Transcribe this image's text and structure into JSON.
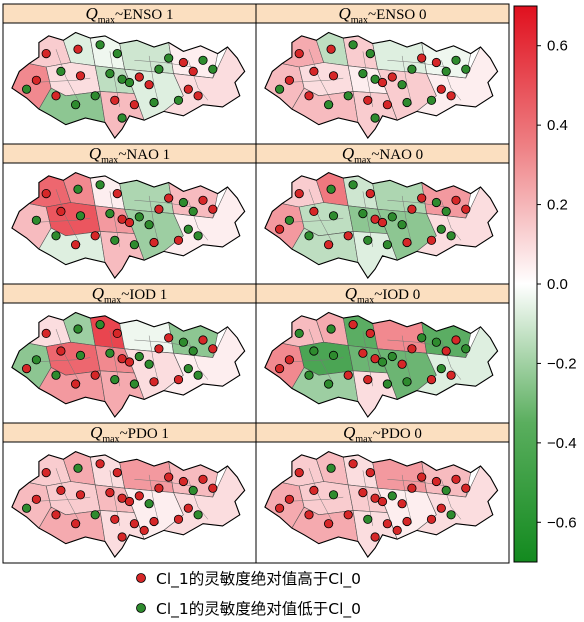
{
  "panels": [
    {
      "index": "max",
      "index_name": "ENSO",
      "phase": "1"
    },
    {
      "index": "max",
      "index_name": "ENSO",
      "phase": "0"
    },
    {
      "index": "max",
      "index_name": "NAO",
      "phase": "1"
    },
    {
      "index": "max",
      "index_name": "NAO",
      "phase": "0"
    },
    {
      "index": "max",
      "index_name": "IOD",
      "phase": "1"
    },
    {
      "index": "max",
      "index_name": "IOD",
      "phase": "0"
    },
    {
      "index": "max",
      "index_name": "PDO",
      "phase": "1"
    },
    {
      "index": "max",
      "index_name": "PDO",
      "phase": "0"
    }
  ],
  "title_symbol": "Q",
  "title_separator": "~",
  "colorbar": {
    "min": -0.7,
    "max": 0.7,
    "ticks": [
      "0.6",
      "0.4",
      "0.2",
      "0.0",
      "−0.2",
      "−0.4",
      "−0.6"
    ],
    "tick_values": [
      0.6,
      0.4,
      0.2,
      0.0,
      -0.2,
      -0.4,
      -0.6
    ],
    "colors": {
      "negative": "#1f8a2a",
      "zero": "#ffffff",
      "positive": "#e0202a"
    }
  },
  "legend": [
    {
      "marker_color": "#d62728",
      "label": "Cl_1的灵敏度绝对值高于Cl_0"
    },
    {
      "marker_color": "#2e8b2e",
      "label": "Cl_1的灵敏度绝对值低于Cl_0"
    }
  ],
  "region_values": [
    [
      0.35,
      0.15,
      -0.1,
      -0.05,
      0.1,
      -0.2,
      -0.35,
      0.2,
      -0.15,
      -0.1,
      0.05,
      0.1
    ],
    [
      0.2,
      0.25,
      -0.2,
      0.15,
      0.1,
      0.05,
      0.2,
      0.15,
      -0.1,
      0.15,
      -0.05,
      0.05
    ],
    [
      0.2,
      0.45,
      0.35,
      0.05,
      0.5,
      0.3,
      -0.1,
      0.2,
      -0.25,
      -0.3,
      0.2,
      0.05
    ],
    [
      0.3,
      0.15,
      0.4,
      -0.15,
      -0.2,
      -0.35,
      -0.2,
      -0.1,
      -0.25,
      -0.35,
      0.3,
      0.1
    ],
    [
      -0.35,
      0.1,
      -0.3,
      0.55,
      0.45,
      0.35,
      0.3,
      0.25,
      -0.05,
      0.1,
      -0.35,
      0.05
    ],
    [
      0.35,
      0.2,
      0.25,
      -0.5,
      -0.55,
      -0.45,
      -0.3,
      0.1,
      0.35,
      -0.45,
      -0.5,
      -0.1
    ],
    [
      0.2,
      0.15,
      0.25,
      0.1,
      0.15,
      0.2,
      0.25,
      0.1,
      0.3,
      0.05,
      0.2,
      0.1
    ],
    [
      0.25,
      0.15,
      0.2,
      0.1,
      0.15,
      0.15,
      0.25,
      0.1,
      0.3,
      0.05,
      0.2,
      0.1
    ]
  ],
  "stations": [
    {
      "red": 13,
      "green": 16
    },
    {
      "red": 14,
      "green": 15
    },
    {
      "red": 13,
      "green": 14
    },
    {
      "red": 14,
      "green": 14
    },
    {
      "red": 14,
      "green": 14
    },
    {
      "red": 10,
      "green": 18
    },
    {
      "red": 24,
      "green": 6
    },
    {
      "red": 24,
      "green": 6
    }
  ]
}
